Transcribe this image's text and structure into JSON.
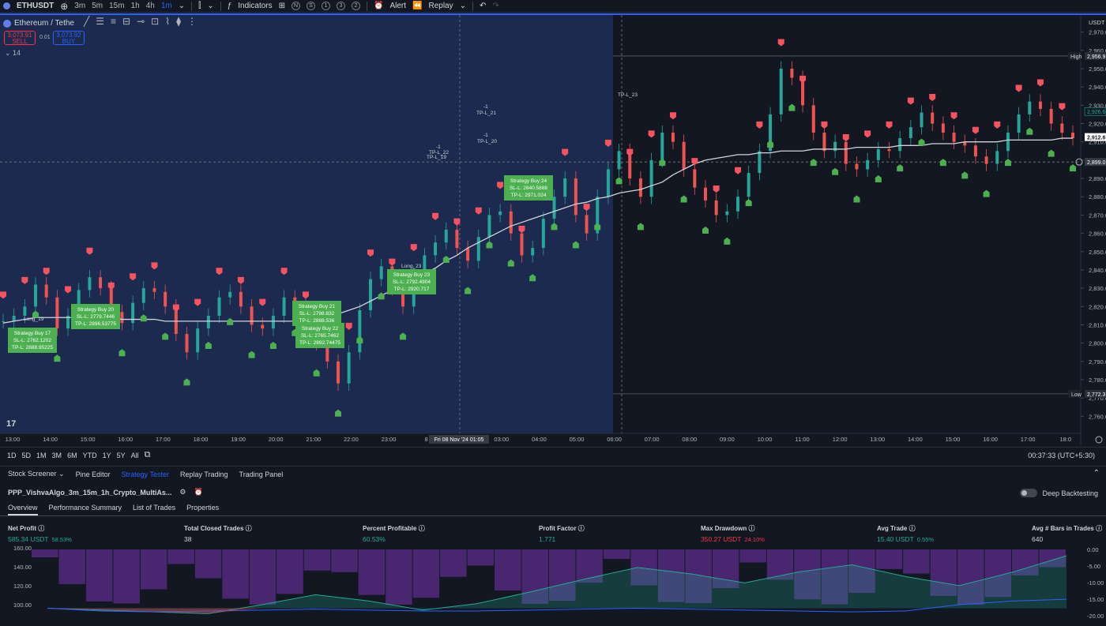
{
  "topbar": {
    "symbol": "ETHUSDT",
    "timeframes": [
      "3m",
      "5m",
      "15m",
      "1h",
      "4h",
      "1m"
    ],
    "active_timeframe": "1m",
    "indicators_label": "Indicators",
    "alert_label": "Alert",
    "replay_label": "Replay",
    "circles": [
      "N",
      "S",
      "1",
      "3",
      "2"
    ]
  },
  "legend": {
    "title": "Ethereum / Tethe",
    "sell_price": "3,073.91",
    "sell_label": "SELL",
    "buy_price": "3,073.92",
    "buy_label": "BUY",
    "spread": "0.01",
    "length": "14"
  },
  "price_axis": {
    "currency": "USDT",
    "ticks": [
      "2,970.00",
      "2,960.00",
      "2,950.00",
      "2,940.00",
      "2,930.00",
      "2,920.00",
      "2,910.00",
      "2,900.00",
      "2,890.00",
      "2,880.00",
      "2,870.00",
      "2,860.00",
      "2,850.00",
      "2,840.00",
      "2,830.00",
      "2,820.00",
      "2,810.00",
      "2,800.00",
      "2,790.00",
      "2,780.00",
      "2,770.00",
      "2,760.00"
    ],
    "high_label": "High",
    "high_value": "2,956.9",
    "low_label": "Low",
    "low_value": "2,772.3",
    "last_value": "2,912.6",
    "prev_value": "2,926.6",
    "crosshair_value": "2,899.0"
  },
  "time_axis": {
    "ticks": [
      "13:00",
      "14:00",
      "15:00",
      "16:00",
      "17:00",
      "18:00",
      "19:00",
      "20:00",
      "21:00",
      "22:00",
      "23:00",
      "8",
      "2:00",
      "03:00",
      "04:00",
      "05:00",
      "06:00",
      "07:00",
      "08:00",
      "09:00",
      "10:00",
      "11:00",
      "12:00",
      "13:00",
      "14:00",
      "15:00",
      "16:00",
      "17:00",
      "18:0"
    ],
    "crosshair_label": "Fri 08 Nov '24  01:05"
  },
  "annotations": [
    {
      "lines": [
        "Strategy Buy 17",
        "SL-L: 2762.1202",
        "TP-L: 2888.95225"
      ]
    },
    {
      "lines": [
        "Strategy Buy 20",
        "SL-L: 2779.7446",
        "TP-L: 2896.53775"
      ]
    },
    {
      "lines": [
        "Strategy Buy 21",
        "SL-L: 2798.832",
        "TP-L: 2888.536"
      ]
    },
    {
      "lines": [
        "Strategy Buy 22",
        "SL-L: 2765.7462",
        "TP-L: 2892.74475"
      ]
    },
    {
      "lines": [
        "Strategy Buy 23",
        "SL-L: 2792.4904",
        "TP-L: 2920.717"
      ]
    },
    {
      "lines": [
        "Strategy Buy 24",
        "SL-L: 2840.5888",
        "TP-L: 2971.024"
      ]
    }
  ],
  "small_labels": {
    "long19": "Long_19",
    "long23": "Long_23",
    "tp22": "TP-L_22",
    "tp19": "TP-L_19",
    "tp21": "TP-L_21",
    "tp20": "TP-L_20",
    "tp23": "TP-L_23",
    "minus1": "-1"
  },
  "rangebar": {
    "ranges": [
      "1D",
      "5D",
      "1M",
      "3M",
      "6M",
      "YTD",
      "1Y",
      "5Y",
      "All"
    ],
    "clock": "00:37:33 (UTC+5:30)"
  },
  "tabs": [
    "Stock Screener",
    "Pine Editor",
    "Strategy Tester",
    "Replay Trading",
    "Trading Panel"
  ],
  "active_tab": "Strategy Tester",
  "strategy_name": "PPP_VishvaAlgo_3m_15m_1h_Crypto_MultiAs...",
  "deep_backtesting": "Deep Backtesting",
  "subtabs": [
    "Overview",
    "Performance Summary",
    "List of Trades",
    "Properties"
  ],
  "metrics": [
    {
      "label": "Net Profit",
      "value": "585.34 USDT",
      "pct": "58.53%",
      "color": "green"
    },
    {
      "label": "Total Closed Trades",
      "value": "38",
      "pct": "",
      "color": "white"
    },
    {
      "label": "Percent Profitable",
      "value": "60.53%",
      "pct": "",
      "color": "green"
    },
    {
      "label": "Profit Factor",
      "value": "1.771",
      "pct": "",
      "color": "green"
    },
    {
      "label": "Max Drawdown",
      "value": "350.27 USDT",
      "pct": "24.10%",
      "color": "red"
    },
    {
      "label": "Avg Trade",
      "value": "15.40 USDT",
      "pct": "0.55%",
      "color": "green"
    },
    {
      "label": "Avg # Bars in Trades",
      "value": "640",
      "pct": "",
      "color": "white"
    }
  ],
  "equity_axis": {
    "left": [
      "160.00",
      "140.00",
      "120.00",
      "100.00"
    ],
    "right": [
      "0.00",
      "-5.00",
      "-10.00",
      "-15.00",
      "-20.00"
    ]
  },
  "chart_data": {
    "type": "line",
    "price_range": [
      2755,
      2975
    ],
    "close_path": [
      2812,
      2815,
      2820,
      2832,
      2825,
      2808,
      2815,
      2829,
      2836,
      2830,
      2817,
      2811,
      2822,
      2830,
      2828,
      2820,
      2805,
      2795,
      2808,
      2815,
      2825,
      2828,
      2820,
      2810,
      2808,
      2815,
      2825,
      2822,
      2812,
      2800,
      2790,
      2778,
      2795,
      2818,
      2835,
      2842,
      2830,
      2820,
      2838,
      2848,
      2855,
      2862,
      2852,
      2845,
      2858,
      2870,
      2872,
      2860,
      2848,
      2852,
      2868,
      2880,
      2890,
      2870,
      2860,
      2880,
      2895,
      2905,
      2890,
      2880,
      2900,
      2915,
      2910,
      2895,
      2885,
      2878,
      2870,
      2872,
      2880,
      2893,
      2905,
      2925,
      2950,
      2945,
      2930,
      2915,
      2905,
      2910,
      2898,
      2895,
      2900,
      2906,
      2905,
      2912,
      2918,
      2926,
      2920,
      2915,
      2910,
      2908,
      2902,
      2898,
      2905,
      2915,
      2925,
      2932,
      2928,
      2920,
      2915,
      2912
    ],
    "ma_path": [
      2811,
      2812,
      2813,
      2814,
      2814,
      2814,
      2814,
      2814,
      2814,
      2814,
      2814,
      2813,
      2813,
      2813,
      2813,
      2812,
      2812,
      2812,
      2812,
      2812,
      2812,
      2812,
      2812,
      2812,
      2812,
      2812,
      2812,
      2812,
      2812,
      2813,
      2814,
      2816,
      2818,
      2820,
      2823,
      2826,
      2829,
      2832,
      2835,
      2838,
      2841,
      2845,
      2848,
      2852,
      2855,
      2858,
      2861,
      2864,
      2866,
      2868,
      2870,
      2872,
      2874,
      2876,
      2877,
      2879,
      2880,
      2882,
      2883,
      2884,
      2886,
      2888,
      2892,
      2895,
      2898,
      2900,
      2901,
      2902,
      2903,
      2903,
      2904,
      2904,
      2905,
      2905,
      2905,
      2906,
      2906,
      2906,
      2906,
      2907,
      2907,
      2907,
      2907,
      2908,
      2908,
      2908,
      2909,
      2909,
      2909,
      2910,
      2910,
      2910,
      2910,
      2911,
      2911,
      2911,
      2911,
      2911,
      2912,
      2912
    ],
    "equity_net_profit": [
      100,
      98,
      96,
      94,
      104,
      115,
      108,
      98,
      105,
      118,
      132,
      145,
      138,
      128,
      140,
      148,
      135,
      125,
      140,
      158
    ],
    "buy_hold": [
      100,
      97,
      96,
      97,
      98,
      99,
      98,
      97,
      97,
      98,
      99,
      100,
      99,
      98,
      97,
      96,
      97,
      104,
      108,
      110
    ]
  }
}
